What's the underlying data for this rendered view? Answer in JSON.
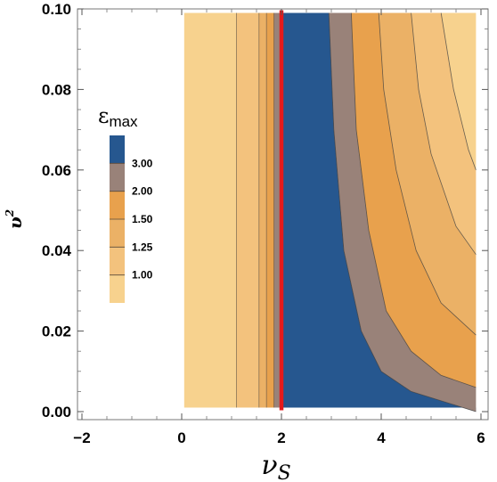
{
  "chart_data": {
    "type": "contour",
    "xlabel": "ν_S",
    "ylabel": "υ²",
    "xlim": [
      -2.2,
      6.1
    ],
    "ylim": [
      -0.001,
      0.101
    ],
    "x_ticks": [
      "−2",
      "0",
      "2",
      "4",
      "6"
    ],
    "x_tick_values": [
      -2,
      0,
      2,
      4,
      6
    ],
    "y_ticks": [
      "0.00",
      "0.02",
      "0.04",
      "0.06",
      "0.08",
      "0.10"
    ],
    "y_tick_values": [
      0.0,
      0.02,
      0.04,
      0.06,
      0.08,
      0.1
    ],
    "data_domain": {
      "x": [
        0.05,
        5.9
      ],
      "y": [
        0.001,
        0.099
      ]
    },
    "legend": {
      "title": "ε",
      "title_sub": "max",
      "levels": [
        "1.00",
        "1.25",
        "1.50",
        "2.00",
        "3.00"
      ],
      "level_values": [
        1.0,
        1.25,
        1.5,
        2.0,
        3.0
      ],
      "colors": [
        "#f7d28e",
        "#f3c27d",
        "#ebb166",
        "#e8a14d",
        "#998279",
        "#26578f"
      ]
    },
    "contour_lines": {
      "left_vertical_x": [
        1.1,
        1.55,
        1.7,
        1.85
      ],
      "right_curves": [
        {
          "level": "3.00",
          "points": [
            [
              2.95,
              0.099
            ],
            [
              3.05,
              0.07
            ],
            [
              3.25,
              0.04
            ],
            [
              3.6,
              0.02
            ],
            [
              4.0,
              0.01
            ],
            [
              4.6,
              0.005
            ],
            [
              5.9,
              0.0
            ]
          ]
        },
        {
          "level": "2.00",
          "points": [
            [
              3.4,
              0.099
            ],
            [
              3.5,
              0.07
            ],
            [
              3.75,
              0.045
            ],
            [
              4.1,
              0.025
            ],
            [
              4.6,
              0.015
            ],
            [
              5.2,
              0.009
            ],
            [
              5.9,
              0.006
            ]
          ]
        },
        {
          "level": "1.50",
          "points": [
            [
              3.95,
              0.099
            ],
            [
              4.05,
              0.08
            ],
            [
              4.3,
              0.06
            ],
            [
              4.7,
              0.04
            ],
            [
              5.2,
              0.027
            ],
            [
              5.9,
              0.019
            ]
          ]
        },
        {
          "level": "1.25",
          "points": [
            [
              4.6,
              0.099
            ],
            [
              4.75,
              0.08
            ],
            [
              5.0,
              0.064
            ],
            [
              5.5,
              0.046
            ],
            [
              5.9,
              0.039
            ]
          ]
        },
        {
          "level": "1.00",
          "points": [
            [
              5.2,
              0.099
            ],
            [
              5.45,
              0.08
            ],
            [
              5.75,
              0.065
            ],
            [
              5.9,
              0.06
            ]
          ]
        }
      ]
    },
    "marker_line": {
      "x": 2.0,
      "color": "#e41a1c"
    }
  }
}
